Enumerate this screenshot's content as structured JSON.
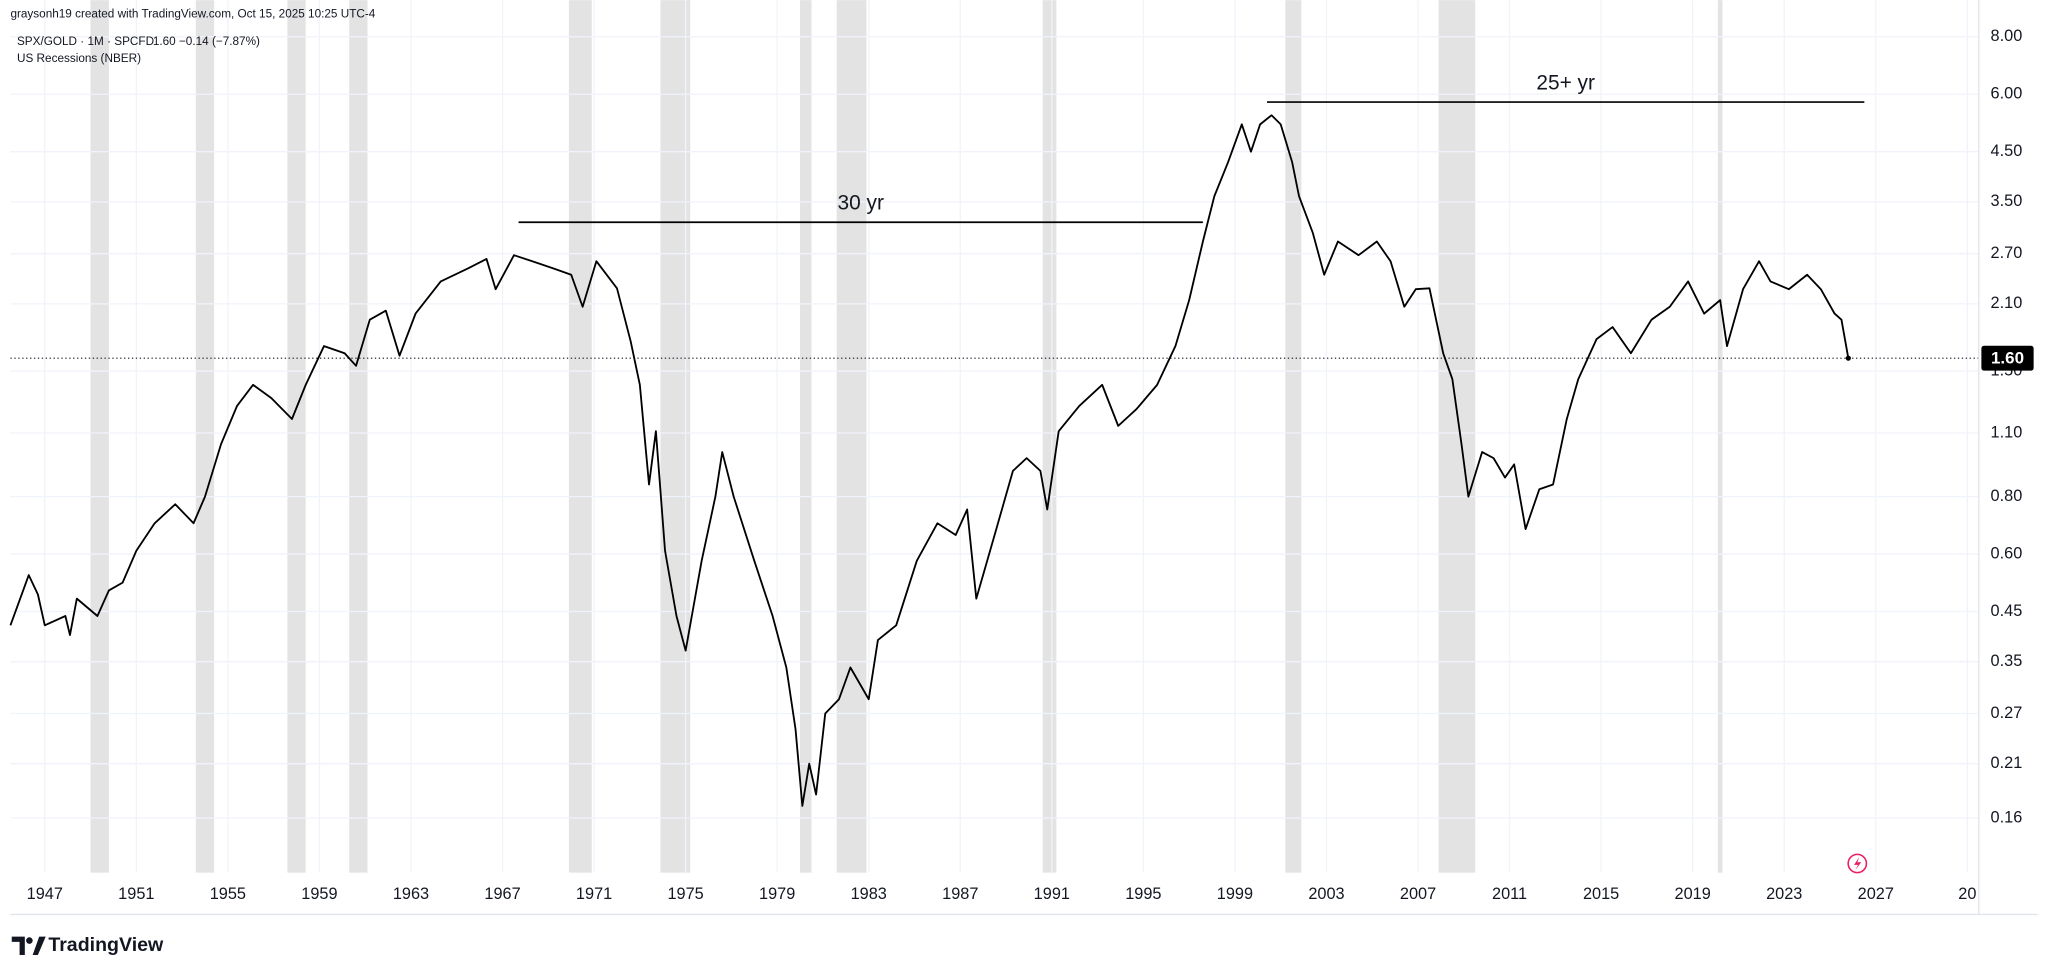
{
  "chart_data": {
    "type": "line",
    "credit": "graysonh19 created with TradingView.com, Oct 15, 2025 10:25 UTC-4",
    "legend_quote": "1.60  −0.14 (−7.87%)",
    "brand": "TradingView",
    "log_y": true,
    "grid": true,
    "xlim": [
      1945.5,
      2031.5
    ],
    "ylim": [
      0.1217,
      9.61
    ],
    "xticks": [
      1947,
      1951,
      1955,
      1959,
      1963,
      1967,
      1971,
      1975,
      1979,
      1983,
      1987,
      1991,
      1995,
      1999,
      2003,
      2007,
      2011,
      2015,
      2019,
      2023,
      2027,
      {
        "value": 2031,
        "label": "20"
      }
    ],
    "yticks": [
      {
        "value": 0.16,
        "label": "0.16"
      },
      {
        "value": 0.21,
        "label": "0.21"
      },
      {
        "value": 0.27,
        "label": "0.27"
      },
      {
        "value": 0.35,
        "label": "0.35"
      },
      {
        "value": 0.45,
        "label": "0.45"
      },
      {
        "value": 0.6,
        "label": "0.60"
      },
      {
        "value": 0.8,
        "label": "0.80"
      },
      {
        "value": 1.1,
        "label": "1.10"
      },
      {
        "value": 1.5,
        "label": "1.50"
      },
      {
        "value": 2.1,
        "label": "2.10"
      },
      {
        "value": 2.7,
        "label": "2.70"
      },
      {
        "value": 3.5,
        "label": "3.50"
      },
      {
        "value": 4.5,
        "label": "4.50"
      },
      {
        "value": 6,
        "label": "6.00"
      },
      {
        "value": 8,
        "label": "8.00"
      }
    ],
    "x": [
      1945.5,
      1946.3,
      1946.7,
      1947.0,
      1947.9,
      1948.1,
      1948.4,
      1949.3,
      1949.8,
      1950.4,
      1951.0,
      1951.8,
      1952.7,
      1953.5,
      1954.0,
      1954.7,
      1955.4,
      1956.1,
      1956.9,
      1957.8,
      1958.4,
      1959.2,
      1960.1,
      1960.6,
      1961.2,
      1961.9,
      1962.5,
      1963.2,
      1964.3,
      1965.5,
      1966.3,
      1966.7,
      1967.5,
      1968.3,
      1969.2,
      1970.0,
      1970.5,
      1971.1,
      1972.0,
      1972.6,
      1973.0,
      1973.4,
      1973.7,
      1974.1,
      1974.6,
      1975.0,
      1975.7,
      1976.3,
      1976.6,
      1977.1,
      1978.0,
      1978.8,
      1979.4,
      1979.8,
      1980.1,
      1980.4,
      1980.7,
      1981.1,
      1981.7,
      1982.2,
      1983.0,
      1983.4,
      1984.2,
      1985.1,
      1986.0,
      1986.8,
      1987.3,
      1987.7,
      1988.5,
      1989.3,
      1989.9,
      1990.5,
      1990.8,
      1991.3,
      1992.2,
      1993.2,
      1993.9,
      1994.7,
      1995.6,
      1996.4,
      1997.0,
      1997.6,
      1998.1,
      1998.7,
      1999.3,
      1999.7,
      2000.1,
      2000.6,
      2001.0,
      2001.5,
      2001.8,
      2002.4,
      2002.9,
      2003.5,
      2004.4,
      2005.2,
      2005.8,
      2006.4,
      2006.9,
      2007.5,
      2008.1,
      2008.5,
      2008.9,
      2009.2,
      2009.8,
      2010.3,
      2010.8,
      2011.2,
      2011.7,
      2012.3,
      2012.9,
      2013.5,
      2014.0,
      2014.8,
      2015.5,
      2016.3,
      2017.2,
      2018.0,
      2018.8,
      2019.5,
      2020.2,
      2020.5,
      2021.2,
      2021.9,
      2022.4,
      2023.2,
      2024.0,
      2024.6,
      2025.2,
      2025.5,
      2025.8
    ],
    "series": [
      {
        "name": "SPX/GOLD · 1M · SPCFD",
        "color": "#000000",
        "values": [
          0.42,
          0.54,
          0.49,
          0.42,
          0.44,
          0.4,
          0.48,
          0.44,
          0.5,
          0.52,
          0.61,
          0.7,
          0.77,
          0.7,
          0.8,
          1.04,
          1.26,
          1.4,
          1.31,
          1.18,
          1.4,
          1.7,
          1.64,
          1.54,
          1.94,
          2.03,
          1.62,
          2.0,
          2.35,
          2.51,
          2.63,
          2.26,
          2.68,
          2.6,
          2.51,
          2.43,
          2.07,
          2.6,
          2.27,
          1.74,
          1.4,
          0.85,
          1.11,
          0.61,
          0.44,
          0.37,
          0.58,
          0.8,
          1.0,
          0.8,
          0.58,
          0.44,
          0.34,
          0.25,
          0.17,
          0.21,
          0.18,
          0.27,
          0.29,
          0.34,
          0.29,
          0.39,
          0.42,
          0.58,
          0.7,
          0.66,
          0.75,
          0.48,
          0.66,
          0.91,
          0.97,
          0.91,
          0.75,
          1.11,
          1.26,
          1.4,
          1.14,
          1.24,
          1.4,
          1.7,
          2.14,
          2.87,
          3.6,
          4.27,
          5.16,
          4.5,
          5.16,
          5.4,
          5.16,
          4.27,
          3.6,
          3.0,
          2.43,
          2.87,
          2.68,
          2.87,
          2.6,
          2.07,
          2.26,
          2.27,
          1.64,
          1.44,
          1.04,
          0.8,
          1.0,
          0.97,
          0.88,
          0.94,
          0.68,
          0.83,
          0.85,
          1.18,
          1.44,
          1.76,
          1.87,
          1.64,
          1.94,
          2.07,
          2.35,
          2.0,
          2.14,
          1.7,
          2.26,
          2.6,
          2.35,
          2.26,
          2.43,
          2.26,
          2.0,
          1.94,
          1.6
        ]
      }
    ],
    "last_price": {
      "value": 1.6,
      "label": "1.60"
    },
    "bands": {
      "name": "US Recessions (NBER)",
      "color": "#e3e3e3",
      "ranges": [
        [
          1949.0,
          1949.8
        ],
        [
          1953.6,
          1954.4
        ],
        [
          1957.6,
          1958.4
        ],
        [
          1960.3,
          1961.1
        ],
        [
          1969.9,
          1970.9
        ],
        [
          1973.9,
          1975.2
        ],
        [
          1980.0,
          1980.5
        ],
        [
          1981.6,
          1982.9
        ],
        [
          1990.6,
          1991.2
        ],
        [
          2001.2,
          2001.9
        ],
        [
          2007.9,
          2009.5
        ],
        [
          2020.1,
          2020.3
        ]
      ]
    },
    "annotations": [
      {
        "text": "30 yr",
        "x": [
          1967.7,
          1997.6
        ],
        "y": 3.16
      },
      {
        "text": "25+ yr",
        "x": [
          2000.4,
          2026.5
        ],
        "y": 5.77
      }
    ]
  }
}
